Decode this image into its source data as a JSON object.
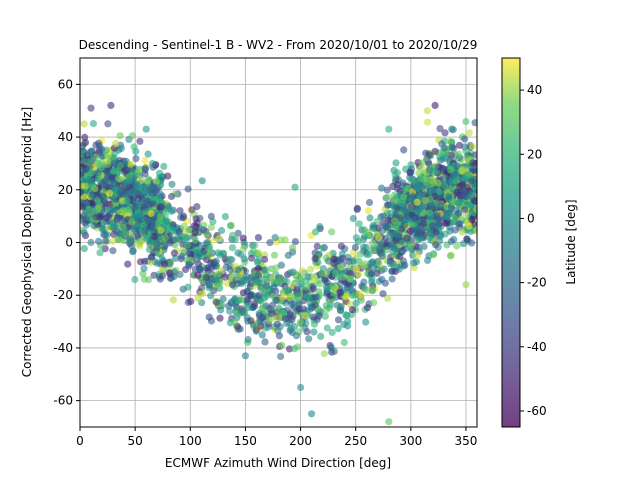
{
  "chart_data": {
    "type": "scatter",
    "title": "Descending - Sentinel-1 B - WV2 - From 2020/10/01 to 2020/10/29",
    "xlabel": "ECMWF Azimuth Wind Direction [deg]",
    "ylabel": "Corrected Geophysical Doppler Centroid [Hz]",
    "xlim": [
      0,
      360
    ],
    "ylim": [
      -70,
      70
    ],
    "xticks": [
      0,
      50,
      100,
      150,
      200,
      250,
      300,
      350
    ],
    "yticks": [
      -60,
      -40,
      -20,
      0,
      20,
      40,
      60
    ],
    "grid": true,
    "colorbar": {
      "label": "Latitude [deg]",
      "range": [
        -65,
        50
      ],
      "ticks": [
        -60,
        -40,
        -20,
        0,
        20,
        40
      ],
      "colormap": "viridis"
    },
    "trend": {
      "description": "V-shaped relation: points near +20 Hz at 0 and 360 deg, minimum about -22 Hz near 180-190 deg",
      "x": [
        0,
        30,
        60,
        90,
        120,
        150,
        180,
        210,
        240,
        270,
        300,
        330,
        360
      ],
      "y": [
        21,
        19,
        10,
        2,
        -10,
        -17,
        -22,
        -21,
        -14,
        -2,
        12,
        19,
        21
      ]
    },
    "notable_points": [
      {
        "x": 10,
        "y": 51,
        "lat": -40
      },
      {
        "x": 28,
        "y": 52,
        "lat": -50
      },
      {
        "x": 60,
        "y": 43,
        "lat": 5
      },
      {
        "x": 195,
        "y": 21,
        "lat": 10
      },
      {
        "x": 210,
        "y": -65,
        "lat": -5
      },
      {
        "x": 280,
        "y": 43,
        "lat": 15
      },
      {
        "x": 315,
        "y": 50,
        "lat": 45
      },
      {
        "x": 322,
        "y": 52,
        "lat": -55
      },
      {
        "x": 350,
        "y": -16,
        "lat": 40
      },
      {
        "x": 280,
        "y": -68,
        "lat": 30
      },
      {
        "x": 200,
        "y": -55,
        "lat": 0
      },
      {
        "x": 150,
        "y": -43,
        "lat": -10
      }
    ],
    "n_points_approx": 3000
  }
}
